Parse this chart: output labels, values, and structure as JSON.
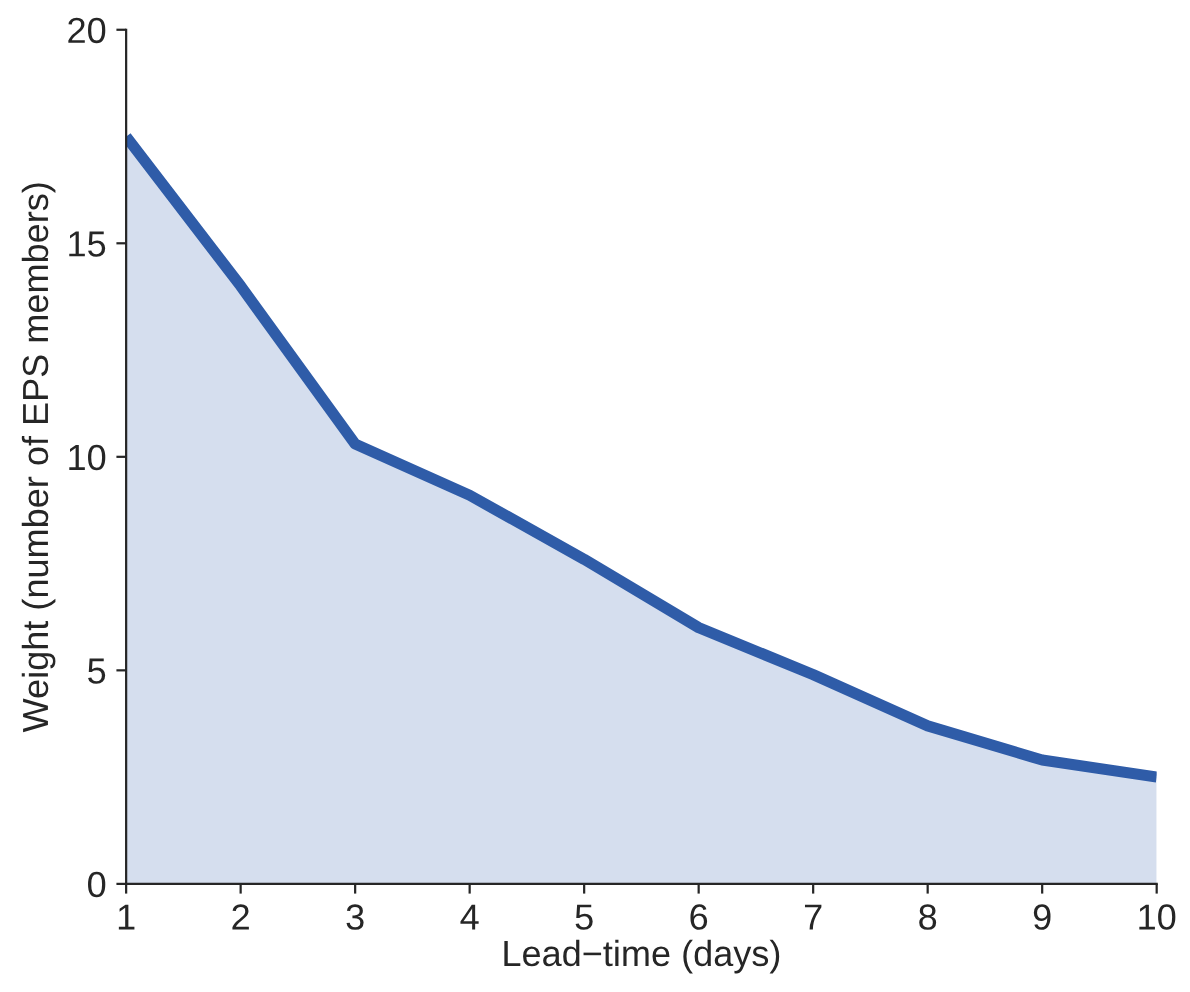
{
  "chart_data": {
    "type": "area",
    "xlabel": "Lead−time (days)",
    "ylabel": "Weight (number of EPS members)",
    "x": [
      1,
      2,
      3,
      4,
      5,
      6,
      7,
      8,
      9,
      10
    ],
    "series": [
      {
        "color": "#2f5ca8",
        "values": [
          17.5,
          14.0,
          10.3,
          9.1,
          7.6,
          6.0,
          4.9,
          3.7,
          2.9,
          2.5
        ]
      }
    ],
    "xlim": [
      1,
      10
    ],
    "ylim": [
      0,
      20
    ],
    "xticks": [
      1,
      2,
      3,
      4,
      5,
      6,
      7,
      8,
      9,
      10
    ],
    "yticks": [
      0,
      5,
      10,
      15,
      20
    ],
    "grid": false
  }
}
